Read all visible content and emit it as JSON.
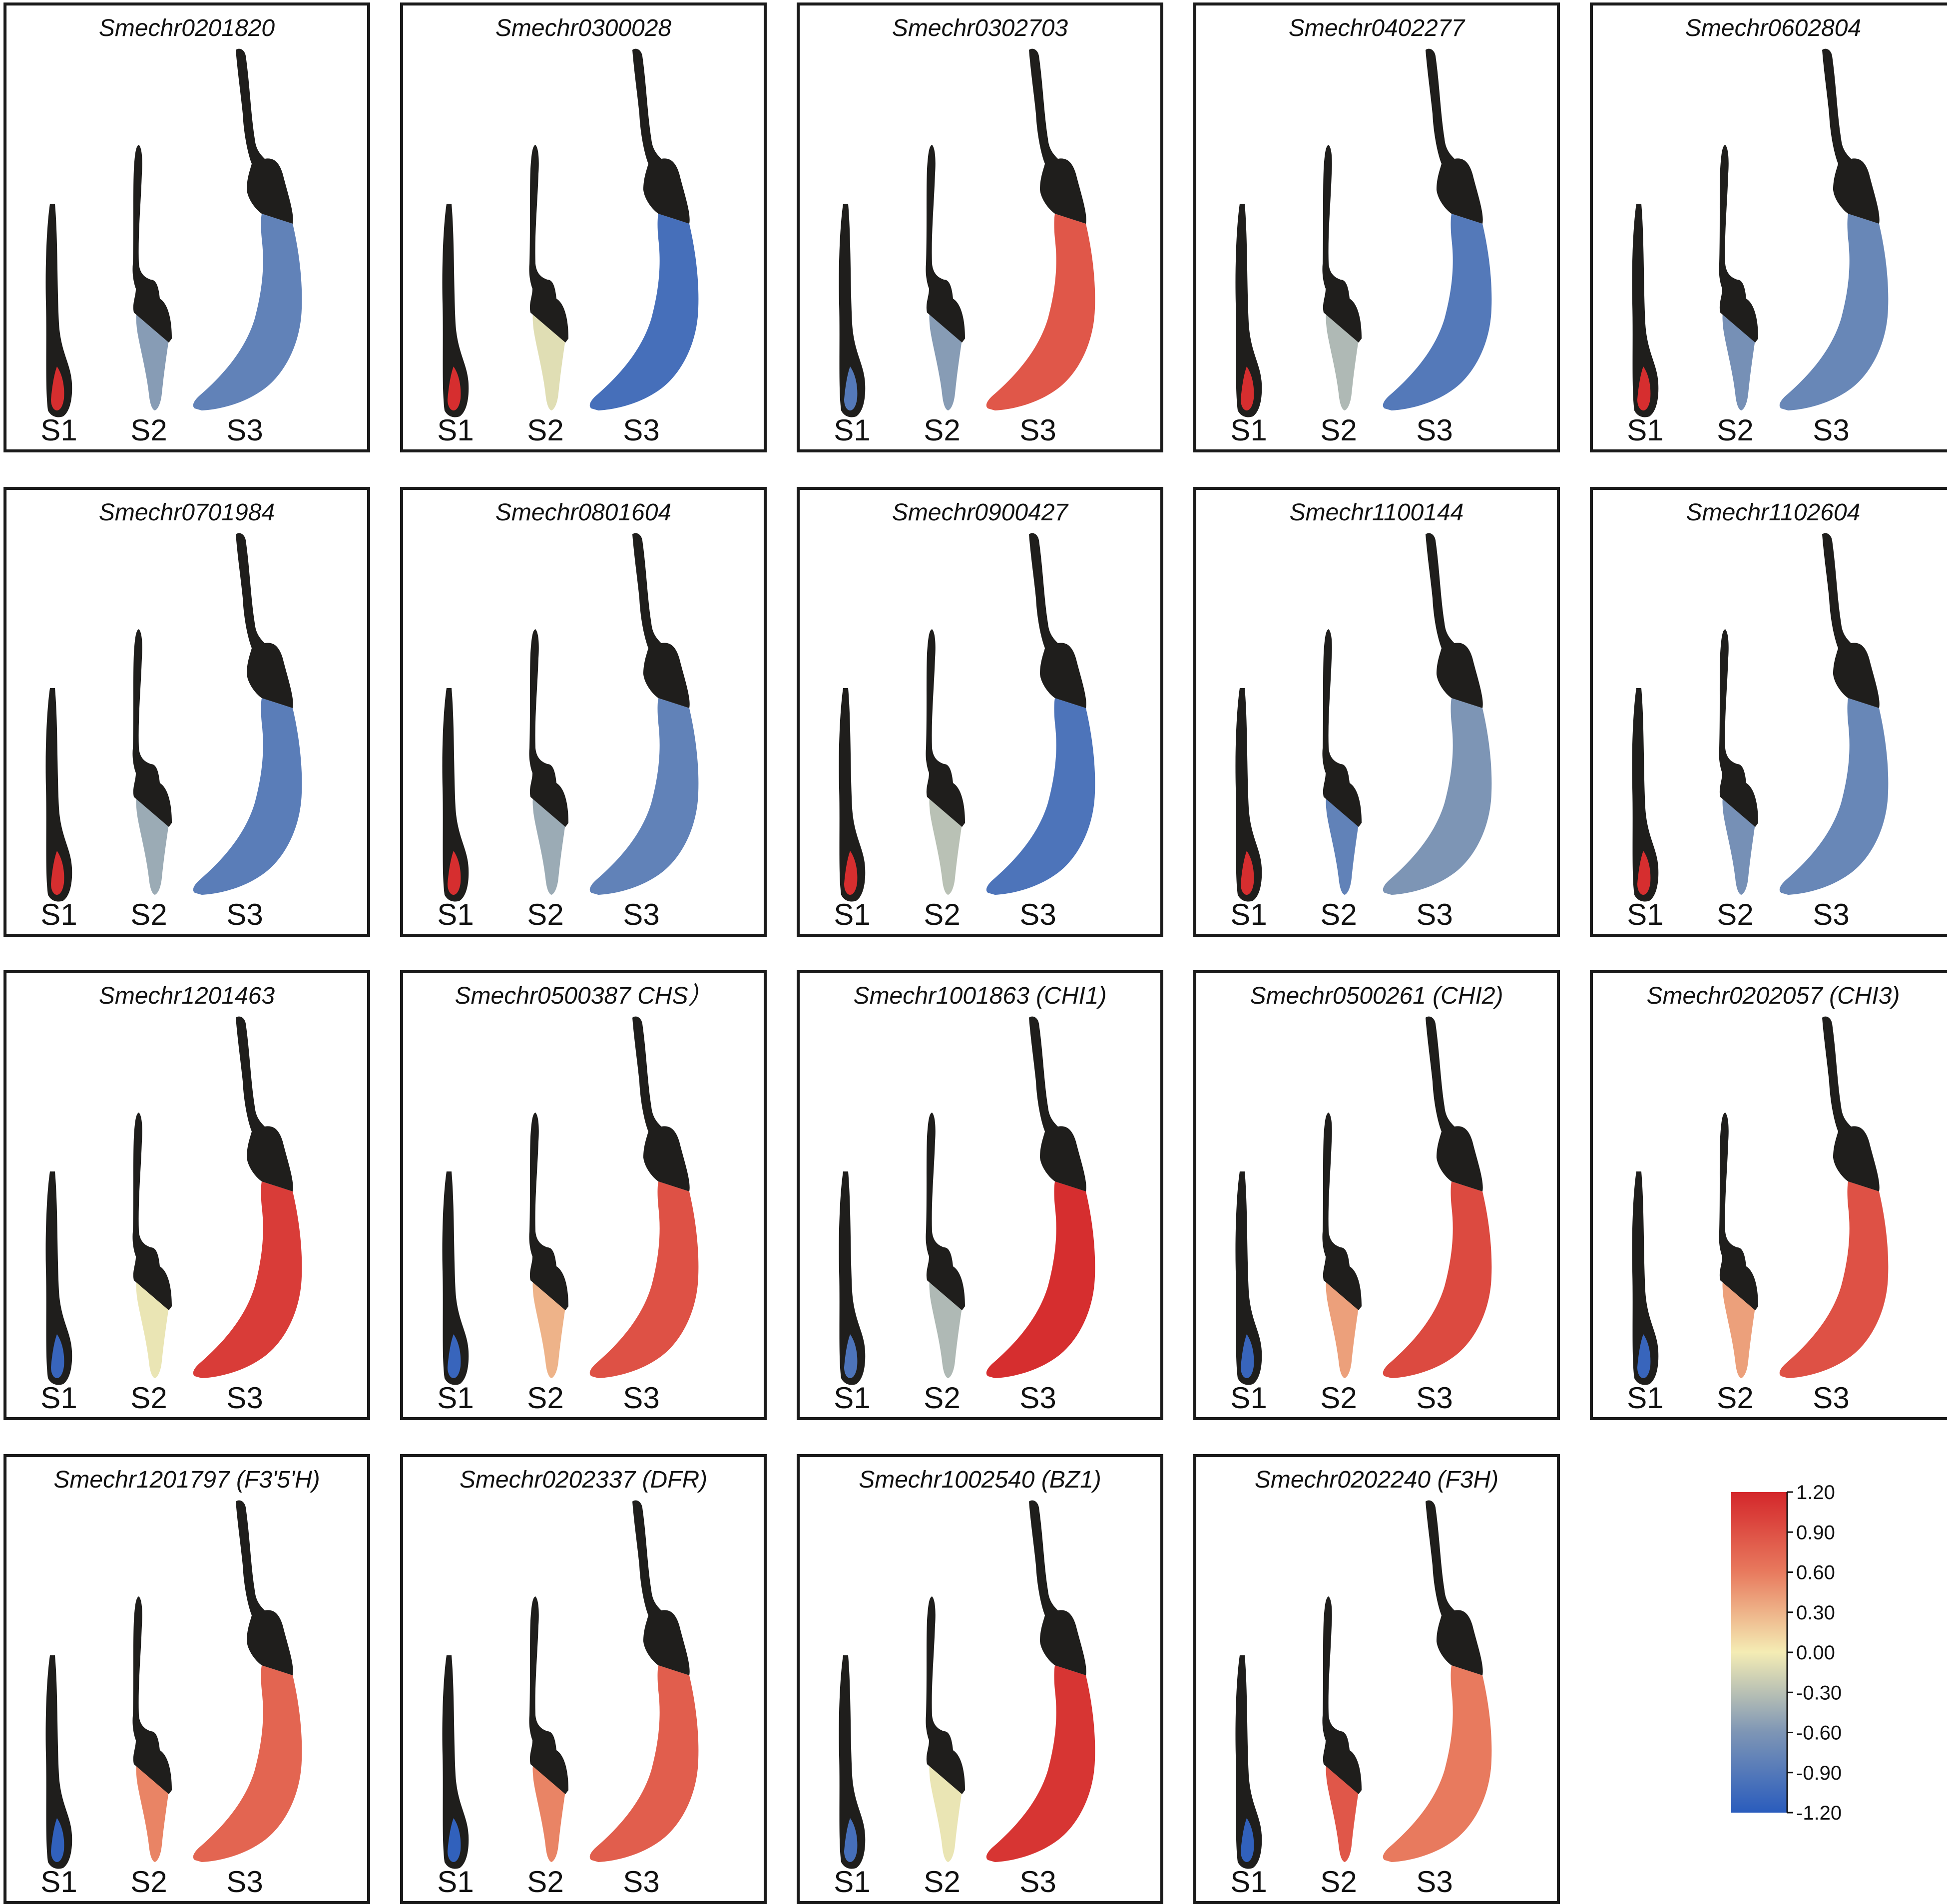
{
  "stage_labels": [
    "S1",
    "S2",
    "S3"
  ],
  "colors": {
    "tissue_dark": "#1f1e1c",
    "panel_border": "#1a1a1a",
    "scale_high": "#d4272b",
    "scale_mid": "#f4ecb4",
    "scale_low": "#2a5cbd"
  },
  "legend": {
    "min": -1.2,
    "max": 1.2,
    "ticks": [
      "1.20",
      "0.90",
      "0.60",
      "0.30",
      "0.00",
      "-0.30",
      "-0.60",
      "-0.90",
      "-1.20"
    ]
  },
  "panels": [
    {
      "title": "Smechr0201820",
      "values": [
        1.15,
        -0.55,
        -0.8
      ]
    },
    {
      "title": "Smechr0300028",
      "values": [
        1.15,
        -0.1,
        -1.0
      ]
    },
    {
      "title": "Smechr0302703",
      "values": [
        -0.9,
        -0.55,
        0.85
      ]
    },
    {
      "title": "Smechr0402277",
      "values": [
        1.15,
        -0.35,
        -0.9
      ]
    },
    {
      "title": "Smechr0602804",
      "values": [
        1.15,
        -0.65,
        -0.75
      ]
    },
    {
      "title": "Smechr0701984",
      "values": [
        1.15,
        -0.45,
        -0.85
      ]
    },
    {
      "title": "Smechr0801604",
      "values": [
        1.15,
        -0.45,
        -0.8
      ]
    },
    {
      "title": "Smechr0900427",
      "values": [
        1.15,
        -0.3,
        -0.95
      ]
    },
    {
      "title": "Smechr1100144",
      "values": [
        1.15,
        -0.8,
        -0.6
      ]
    },
    {
      "title": "Smechr1102604",
      "values": [
        1.15,
        -0.65,
        -0.75
      ]
    },
    {
      "title": "Smechr1201463",
      "values": [
        -1.1,
        -0.05,
        1.05
      ]
    },
    {
      "title": "Smechr0500387 CHS）",
      "values": [
        -1.1,
        0.3,
        0.9
      ]
    },
    {
      "title": "Smechr1001863 (CHI1)",
      "values": [
        -0.95,
        -0.35,
        1.15
      ]
    },
    {
      "title": "Smechr0500261 (CHI2)",
      "values": [
        -1.1,
        0.4,
        0.95
      ]
    },
    {
      "title": "Smechr0202057 (CHI3)",
      "values": [
        -1.1,
        0.4,
        0.9
      ]
    },
    {
      "title": "Smechr1201797 (F3'5'H)",
      "values": [
        -1.15,
        0.55,
        0.75
      ]
    },
    {
      "title": "Smechr0202337 (DFR)",
      "values": [
        -1.15,
        0.55,
        0.8
      ]
    },
    {
      "title": "Smechr1002540 (BZ1)",
      "values": [
        -1.0,
        -0.05,
        1.1
      ]
    },
    {
      "title": "Smechr0202240 (F3H)",
      "values": [
        -1.15,
        0.85,
        0.6
      ]
    }
  ]
}
